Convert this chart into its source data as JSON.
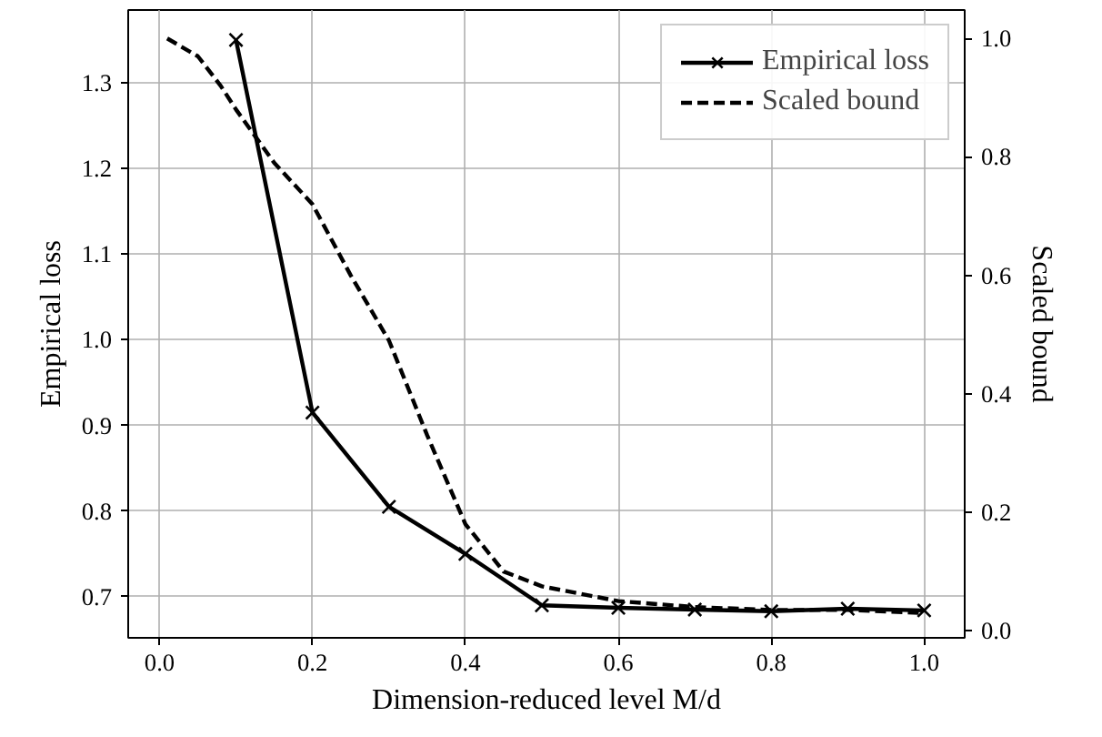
{
  "chart_data": {
    "type": "line",
    "xlabel": "Dimension-reduced level M/d",
    "ylabel": "Empirical loss",
    "y2label": "Scaled bound",
    "xlim": [
      -0.041,
      1.053
    ],
    "xticks": [
      {
        "value": 0,
        "label": "0.0"
      },
      0.2,
      0.4,
      0.6,
      0.8,
      {
        "value": 1,
        "label": "1.0"
      }
    ],
    "ylim": [
      0.652,
      1.385
    ],
    "yticks": [
      0.7,
      0.8,
      0.9,
      {
        "value": 1,
        "label": "1.0"
      },
      1.1,
      1.2,
      1.3
    ],
    "y2lim": [
      -0.012,
      1.048
    ],
    "y2ticks": [
      {
        "value": 0,
        "label": "0.0"
      },
      0.2,
      0.4,
      0.6,
      0.8,
      {
        "value": 1,
        "label": "1.0"
      }
    ],
    "grid": true,
    "legend": "top right",
    "series": [
      {
        "name": "Empirical loss",
        "color": "#000000",
        "marker": "cross",
        "line_style": "solid",
        "x": [
          0.1,
          0.2,
          0.3,
          0.4,
          0.5,
          0.6,
          0.7,
          0.8,
          0.9,
          1.0
        ],
        "values": [
          1.35,
          0.915,
          0.805,
          0.75,
          0.69,
          0.687,
          0.685,
          0.683,
          0.686,
          0.684
        ]
      },
      {
        "name": "Scaled bound",
        "color": "#000000",
        "marker": "none",
        "line_style": "dashed",
        "axis": "y2",
        "x": [
          0.01,
          0.05,
          0.08,
          0.1,
          0.15,
          0.2,
          0.25,
          0.3,
          0.35,
          0.4,
          0.45,
          0.5,
          0.6,
          0.7,
          0.8,
          0.9,
          1.0
        ],
        "values": [
          1.0,
          0.97,
          0.92,
          0.88,
          0.79,
          0.72,
          0.6,
          0.49,
          0.33,
          0.18,
          0.1,
          0.075,
          0.05,
          0.04,
          0.035,
          0.035,
          0.03
        ]
      }
    ]
  }
}
